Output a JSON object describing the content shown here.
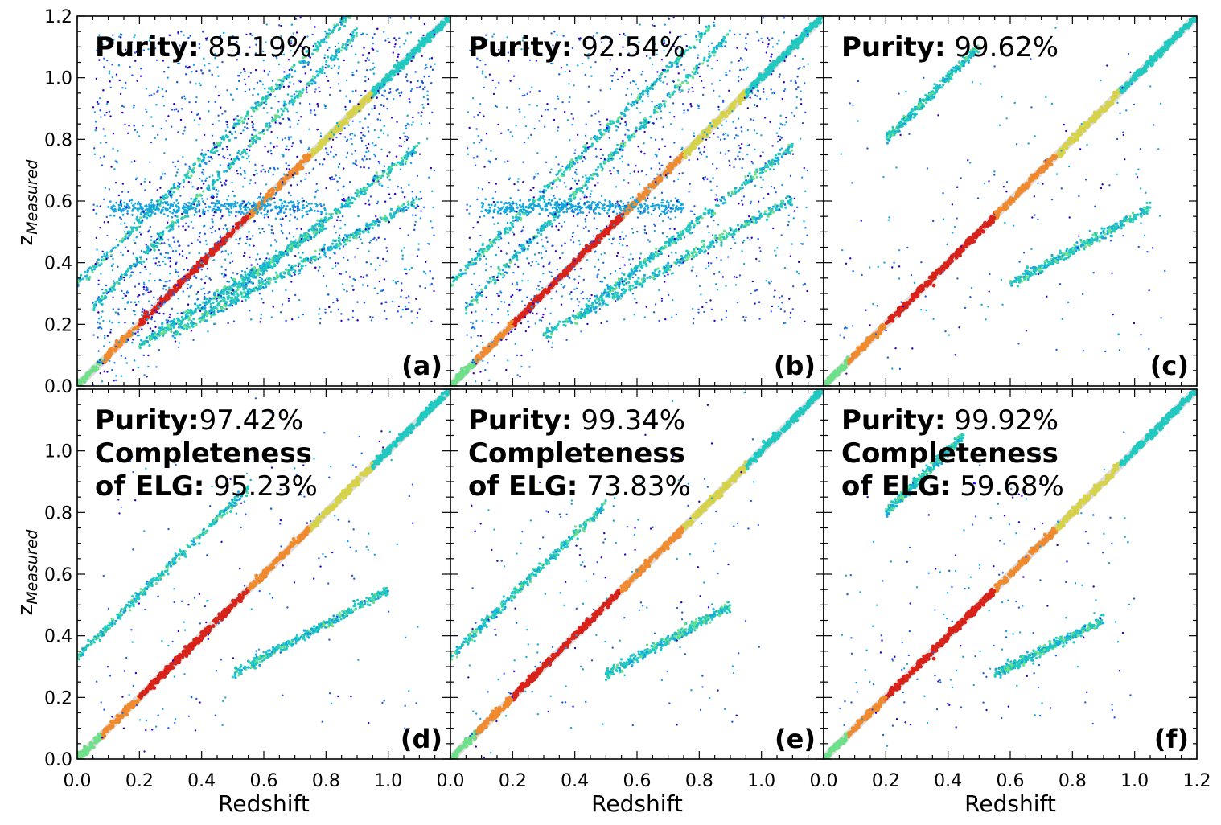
{
  "figure": {
    "xlabel": "Redshift",
    "ylabel_main": "z",
    "ylabel_sub": "Measured"
  },
  "chart_data": [
    {
      "type": "scatter",
      "panel": "(a)",
      "purity_label": "Purity:",
      "purity_value": "85.19%",
      "purity_value_num": 85.19,
      "completeness_label": "",
      "completeness_value": "",
      "xlim": [
        0.0,
        1.2
      ],
      "ylim": [
        0.0,
        1.2
      ],
      "xticks": [
        "0.0",
        "0.2",
        "0.4",
        "0.6",
        "0.8",
        "1.0"
      ],
      "yticks": [
        "0.0",
        "0.2",
        "0.4",
        "0.6",
        "0.8",
        "1.0",
        "1.2"
      ],
      "density_cmap": "jet",
      "diagonal_line": "y=x",
      "structures": [
        {
          "kind": "diagonal",
          "slope": 1.0,
          "intercept": 0.0,
          "x": [
            0.0,
            1.2
          ]
        },
        {
          "kind": "band",
          "slope": 1.0,
          "intercept": 0.33,
          "x": [
            0.0,
            0.9
          ]
        },
        {
          "kind": "band",
          "slope": 1.05,
          "intercept": 0.2,
          "x": [
            0.05,
            0.9
          ]
        },
        {
          "kind": "band",
          "slope": 0.55,
          "intercept": 0.0,
          "x": [
            0.3,
            1.1
          ]
        },
        {
          "kind": "band",
          "slope": 0.65,
          "intercept": 0.0,
          "x": [
            0.2,
            0.8
          ]
        },
        {
          "kind": "band",
          "slope": 0.8,
          "intercept": -0.1,
          "x": [
            0.4,
            1.1
          ]
        },
        {
          "kind": "horizontal",
          "y": 0.58,
          "x": [
            0.1,
            0.8
          ]
        },
        {
          "kind": "scatter_cloud",
          "x": [
            0.05,
            1.15
          ],
          "y": [
            0.2,
            1.15
          ],
          "density": "high"
        }
      ]
    },
    {
      "type": "scatter",
      "panel": "(b)",
      "purity_label": "Purity:",
      "purity_value": "92.54%",
      "purity_value_num": 92.54,
      "completeness_label": "",
      "completeness_value": "",
      "xlim": [
        0.0,
        1.2
      ],
      "ylim": [
        0.0,
        1.2
      ],
      "xticks": [
        "0.0",
        "0.2",
        "0.4",
        "0.6",
        "0.8",
        "1.0"
      ],
      "yticks": [],
      "density_cmap": "jet",
      "diagonal_line": "y=x",
      "structures": [
        {
          "kind": "diagonal",
          "slope": 1.0,
          "intercept": 0.0,
          "x": [
            0.0,
            1.2
          ]
        },
        {
          "kind": "band",
          "slope": 1.0,
          "intercept": 0.33,
          "x": [
            0.0,
            0.85
          ]
        },
        {
          "kind": "band",
          "slope": 1.05,
          "intercept": 0.2,
          "x": [
            0.05,
            0.9
          ]
        },
        {
          "kind": "band",
          "slope": 0.55,
          "intercept": 0.0,
          "x": [
            0.3,
            1.1
          ]
        },
        {
          "kind": "band",
          "slope": 0.8,
          "intercept": -0.1,
          "x": [
            0.4,
            1.1
          ]
        },
        {
          "kind": "horizontal",
          "y": 0.58,
          "x": [
            0.1,
            0.75
          ]
        },
        {
          "kind": "scatter_cloud",
          "x": [
            0.05,
            1.15
          ],
          "y": [
            0.2,
            1.15
          ],
          "density": "medium"
        }
      ]
    },
    {
      "type": "scatter",
      "panel": "(c)",
      "purity_label": "Purity:",
      "purity_value": "99.62%",
      "purity_value_num": 99.62,
      "completeness_label": "",
      "completeness_value": "",
      "xlim": [
        0.0,
        1.2
      ],
      "ylim": [
        0.0,
        1.2
      ],
      "xticks": [
        "0.0",
        "0.2",
        "0.4",
        "0.6",
        "0.8",
        "1.0",
        "1.2"
      ],
      "yticks": [],
      "density_cmap": "jet",
      "diagonal_line": "y=x",
      "structures": [
        {
          "kind": "diagonal",
          "slope": 1.0,
          "intercept": 0.0,
          "x": [
            0.0,
            1.2
          ]
        },
        {
          "kind": "band",
          "slope": 1.0,
          "intercept": 0.6,
          "x": [
            0.2,
            0.5
          ]
        },
        {
          "kind": "band",
          "slope": 0.55,
          "intercept": 0.0,
          "x": [
            0.6,
            1.05
          ]
        },
        {
          "kind": "scatter_cloud",
          "x": [
            0.05,
            1.1
          ],
          "y": [
            0.1,
            1.0
          ],
          "density": "low"
        }
      ]
    },
    {
      "type": "scatter",
      "panel": "(d)",
      "purity_label": "Purity:",
      "purity_value": "97.42%",
      "purity_value_num": 97.42,
      "completeness_label": "Completeness of ELG:",
      "completeness_label_1": "Completeness",
      "completeness_label_2": "of ELG:",
      "completeness_value": "95.23%",
      "completeness_value_num": 95.23,
      "xlim": [
        0.0,
        1.2
      ],
      "ylim": [
        0.0,
        1.2
      ],
      "xticks": [
        "0.0",
        "0.2",
        "0.4",
        "0.6",
        "0.8",
        "1.0"
      ],
      "yticks": [
        "0.0",
        "0.2",
        "0.4",
        "0.6",
        "0.8",
        "1.0"
      ],
      "density_cmap": "jet",
      "diagonal_line": "y=x",
      "structures": [
        {
          "kind": "diagonal",
          "slope": 1.0,
          "intercept": 0.0,
          "x": [
            0.0,
            1.2
          ]
        },
        {
          "kind": "band",
          "slope": 1.0,
          "intercept": 0.33,
          "x": [
            0.0,
            0.55
          ]
        },
        {
          "kind": "band",
          "slope": 0.55,
          "intercept": 0.0,
          "x": [
            0.5,
            1.0
          ]
        },
        {
          "kind": "scatter_cloud",
          "x": [
            0.05,
            1.1
          ],
          "y": [
            0.05,
            1.0
          ],
          "density": "low"
        }
      ]
    },
    {
      "type": "scatter",
      "panel": "(e)",
      "purity_label": "Purity:",
      "purity_value": "99.34%",
      "purity_value_num": 99.34,
      "completeness_label": "Completeness of ELG:",
      "completeness_label_1": "Completeness",
      "completeness_label_2": "of ELG:",
      "completeness_value": "73.83%",
      "completeness_value_num": 73.83,
      "xlim": [
        0.0,
        1.2
      ],
      "ylim": [
        0.0,
        1.2
      ],
      "xticks": [
        "0.0",
        "0.2",
        "0.4",
        "0.6",
        "0.8",
        "1.0"
      ],
      "yticks": [],
      "density_cmap": "jet",
      "diagonal_line": "y=x",
      "structures": [
        {
          "kind": "diagonal",
          "slope": 1.0,
          "intercept": 0.0,
          "x": [
            0.0,
            1.2
          ]
        },
        {
          "kind": "band",
          "slope": 1.0,
          "intercept": 0.33,
          "x": [
            0.0,
            0.5
          ]
        },
        {
          "kind": "band",
          "slope": 0.55,
          "intercept": 0.0,
          "x": [
            0.5,
            0.9
          ]
        },
        {
          "kind": "scatter_cloud",
          "x": [
            0.05,
            1.0
          ],
          "y": [
            0.1,
            0.9
          ],
          "density": "low"
        }
      ]
    },
    {
      "type": "scatter",
      "panel": "(f)",
      "purity_label": "Purity:",
      "purity_value": "99.92%",
      "purity_value_num": 99.92,
      "completeness_label": "Completeness of ELG:",
      "completeness_label_1": "Completeness",
      "completeness_label_2": "of ELG:",
      "completeness_value": "59.68%",
      "completeness_value_num": 59.68,
      "xlim": [
        0.0,
        1.2
      ],
      "ylim": [
        0.0,
        1.2
      ],
      "xticks": [
        "0.0",
        "0.2",
        "0.4",
        "0.6",
        "0.8",
        "1.0",
        "1.2"
      ],
      "yticks": [],
      "density_cmap": "jet",
      "diagonal_line": "y=x",
      "structures": [
        {
          "kind": "diagonal",
          "slope": 1.0,
          "intercept": 0.0,
          "x": [
            0.0,
            1.2
          ]
        },
        {
          "kind": "band",
          "slope": 1.0,
          "intercept": 0.6,
          "x": [
            0.2,
            0.45
          ]
        },
        {
          "kind": "band",
          "slope": 0.5,
          "intercept": 0.0,
          "x": [
            0.55,
            0.9
          ]
        },
        {
          "kind": "scatter_cloud",
          "x": [
            0.05,
            1.0
          ],
          "y": [
            0.1,
            0.9
          ],
          "density": "low"
        }
      ]
    }
  ]
}
